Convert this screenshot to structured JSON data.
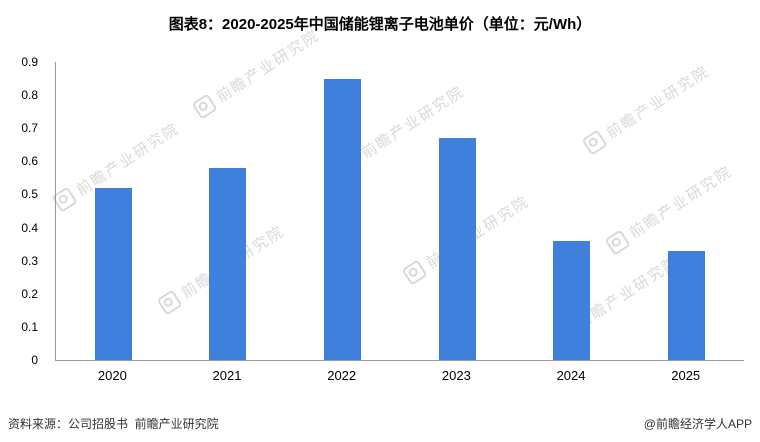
{
  "chart_data": {
    "type": "bar",
    "title": "图表8：2020-2025年中国储能锂离子电池单价（单位：元/Wh）",
    "categories": [
      "2020",
      "2021",
      "2022",
      "2023",
      "2024",
      "2025"
    ],
    "values": [
      0.52,
      0.58,
      0.85,
      0.67,
      0.36,
      0.33
    ],
    "xlabel": "",
    "ylabel": "",
    "ylim": [
      0,
      0.9
    ],
    "y_tick_labels": [
      "0",
      "0.1",
      "0.2",
      "0.3",
      "0.4",
      "0.5",
      "0.6",
      "0.7",
      "0.8",
      "0.9"
    ],
    "grid": false,
    "legend": false,
    "bar_color": "#3e80dc"
  },
  "watermark": {
    "text": "前瞻产业研究院"
  },
  "footer": {
    "source": "资料来源：公司招股书  前瞻产业研究院",
    "credit": "@前瞻经济学人APP"
  }
}
